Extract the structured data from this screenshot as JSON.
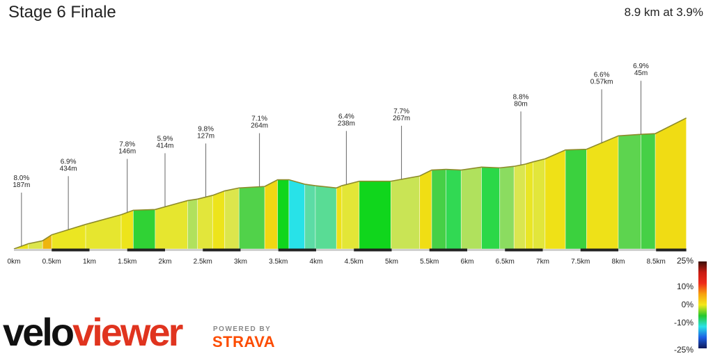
{
  "header": {
    "title": "Stage 6 Finale",
    "summary": "8.9 km at 3.9%"
  },
  "brand": {
    "primary_a": "velo",
    "primary_b": "viewer",
    "powered_by": "POWERED BY",
    "partner": "STRAVA"
  },
  "chart_data": {
    "type": "area",
    "xlabel": "",
    "ylabel": "",
    "xlim": [
      0,
      8.9
    ],
    "x_tick_values": [
      0,
      0.5,
      1,
      1.5,
      2,
      2.5,
      3,
      3.5,
      4,
      4.5,
      5,
      5.5,
      6,
      6.5,
      7,
      7.5,
      8,
      8.5
    ],
    "x_tick_labels": [
      "0km",
      "0.5km",
      "1km",
      "1.5km",
      "2km",
      "2.5km",
      "3km",
      "3.5km",
      "4km",
      "4.5km",
      "5km",
      "5.5km",
      "6km",
      "6.5km",
      "7km",
      "7.5km",
      "8km",
      "8.5km"
    ],
    "profile": {
      "distance_km": [
        0,
        0.19,
        0.38,
        0.5,
        0.95,
        1.42,
        1.58,
        1.87,
        2.3,
        2.43,
        2.63,
        2.79,
        2.98,
        3.32,
        3.49,
        3.64,
        3.85,
        3.99,
        4.27,
        4.34,
        4.57,
        4.99,
        5.37,
        5.53,
        5.72,
        5.92,
        6.19,
        6.43,
        6.62,
        6.77,
        6.87,
        7.03,
        7.3,
        7.58,
        8.0,
        8.3,
        8.49,
        8.9
      ],
      "elevation_m": [
        0,
        7,
        11,
        19,
        33,
        46,
        52,
        53,
        65,
        67,
        72,
        78,
        82,
        84,
        93,
        93,
        87,
        85,
        82,
        85,
        91,
        91,
        98,
        106,
        107,
        106,
        110,
        109,
        111,
        114,
        117,
        121,
        133,
        134,
        152,
        154,
        155,
        176
      ],
      "segment_gradient_pct": [
        3.7,
        2.1,
        6.7,
        3.1,
        2.8,
        3.7,
        0.3,
        2.8,
        1.5,
        2.5,
        3.7,
        2.1,
        0.6,
        5.3,
        0,
        -4,
        -1.4,
        -1.1,
        4.3,
        2.6,
        0,
        1.8,
        5.0,
        0.5,
        -0.5,
        1.5,
        -0.4,
        1.1,
        2.0,
        3.0,
        2.5,
        4.4,
        0.4,
        4.3,
        0.7,
        0.5,
        5.1
      ]
    },
    "annotations": [
      {
        "gradient": "8.0%",
        "length": "187m",
        "at_km": 0.1
      },
      {
        "gradient": "6.9%",
        "length": "434m",
        "at_km": 0.72
      },
      {
        "gradient": "7.8%",
        "length": "146m",
        "at_km": 1.5
      },
      {
        "gradient": "5.9%",
        "length": "414m",
        "at_km": 2.0
      },
      {
        "gradient": "9.8%",
        "length": "127m",
        "at_km": 2.54
      },
      {
        "gradient": "7.1%",
        "length": "264m",
        "at_km": 3.25
      },
      {
        "gradient": "6.4%",
        "length": "238m",
        "at_km": 4.4
      },
      {
        "gradient": "7.7%",
        "length": "267m",
        "at_km": 5.13
      },
      {
        "gradient": "8.8%",
        "length": "80m",
        "at_km": 6.71
      },
      {
        "gradient": "6.6%",
        "length": "0.57km",
        "at_km": 7.78
      },
      {
        "gradient": "6.9%",
        "length": "45m",
        "at_km": 8.3
      }
    ],
    "gradient_scale": {
      "stops": [
        "25%",
        "10%",
        "0%",
        "-10%",
        "-25%"
      ],
      "colors": [
        "#3a0f08",
        "#c81b12",
        "#ee2a1a",
        "#f7a10e",
        "#f4e81a",
        "#25c72d",
        "#28e2e8",
        "#1c5fe3",
        "#101a5a"
      ]
    }
  }
}
